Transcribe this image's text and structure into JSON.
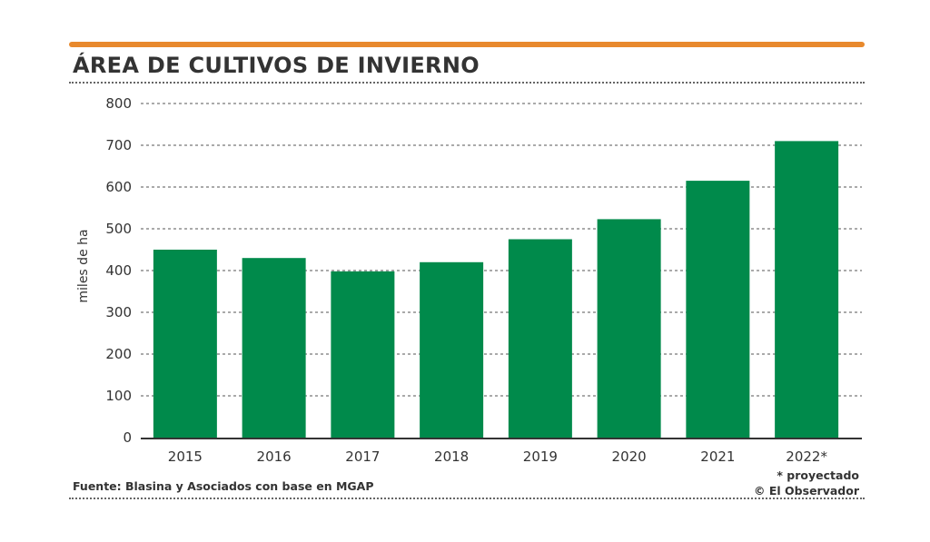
{
  "header": {
    "title": "ÁREA DE CULTIVOS DE INVIERNO",
    "accent_color": "#e8892d"
  },
  "chart_data": {
    "type": "bar",
    "title": "ÁREA DE CULTIVOS DE INVIERNO",
    "xlabel": "",
    "ylabel": "miles de ha",
    "categories": [
      "2015",
      "2016",
      "2017",
      "2018",
      "2019",
      "2020",
      "2021",
      "2022*"
    ],
    "values": [
      450,
      430,
      398,
      420,
      475,
      523,
      615,
      710
    ],
    "ylim": [
      0,
      800
    ],
    "yticks": [
      0,
      100,
      200,
      300,
      400,
      500,
      600,
      700,
      800
    ],
    "grid": true,
    "bar_color": "#008a4b"
  },
  "footer": {
    "source": "Fuente: Blasina y Asociados con base en MGAP",
    "note": "* proyectado",
    "credit": "© El Observador"
  }
}
